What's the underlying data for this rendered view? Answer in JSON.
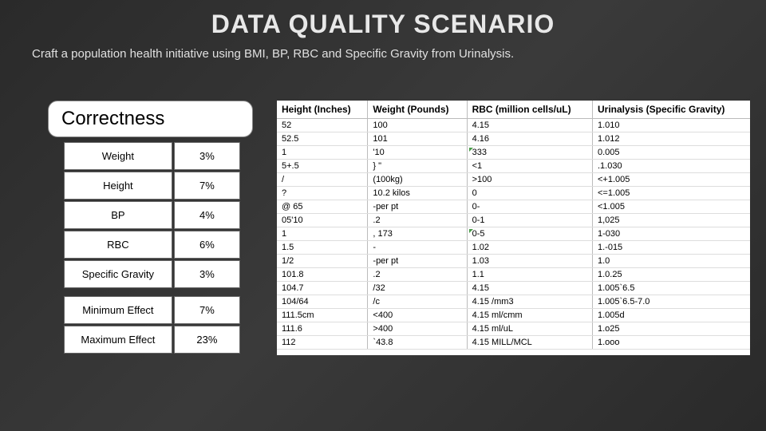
{
  "title": "DATA QUALITY SCENARIO",
  "subtitle": "Craft a population health initiative using BMI, BP, RBC and Specific Gravity from Urinalysis.",
  "correctness": {
    "header": "Correctness",
    "rows": [
      {
        "label": "Weight",
        "value": "3%"
      },
      {
        "label": "Height",
        "value": "7%"
      },
      {
        "label": "BP",
        "value": "4%"
      },
      {
        "label": "RBC",
        "value": "6%"
      },
      {
        "label": "Specific Gravity",
        "value": "3%"
      }
    ],
    "summary": [
      {
        "label": "Minimum Effect",
        "value": "7%"
      },
      {
        "label": "Maximum Effect",
        "value": "23%"
      }
    ]
  },
  "data_table": {
    "columns": [
      "Height (Inches)",
      "Weight (Pounds)",
      "RBC (million cells/uL)",
      "Urinalysis (Specific Gravity)"
    ],
    "rows": [
      [
        "52",
        "100",
        "4.15",
        "1.010"
      ],
      [
        "52.5",
        "101",
        "4.16",
        "1.012"
      ],
      [
        "1",
        "'10",
        "333",
        "0.005"
      ],
      [
        "5+.5",
        "} \"",
        "<1",
        ".1.030"
      ],
      [
        "/",
        "(100kg)",
        ">100",
        "<+1.005"
      ],
      [
        "?",
        "10.2 kilos",
        "0",
        "<=1.005"
      ],
      [
        "@ 65",
        "-per pt",
        "0-",
        "<1.005"
      ],
      [
        "05'10",
        ".2",
        "0-1",
        "1,025"
      ],
      [
        "1",
        ",                    173",
        "0-5",
        "1-030"
      ],
      [
        "1.5",
        "-",
        "1.02",
        "1.-015"
      ],
      [
        "1/2",
        "-per pt",
        "1.03",
        "1.0"
      ],
      [
        "101.8",
        ".2",
        "1.1",
        "1.0.25"
      ],
      [
        "104.7",
        "/32",
        "4.15",
        "1.005`6.5"
      ],
      [
        "104/64",
        "/c",
        "4.15 /mm3",
        "1.005`6.5-7.0"
      ],
      [
        "111.5cm",
        "<400",
        "4.15 ml/cmm",
        "1.005d"
      ],
      [
        "111.6",
        ">400",
        "4.15 ml/uL",
        "1.o25"
      ],
      [
        "112",
        "`43.8",
        "4.15 MILL/MCL",
        "1.ooo"
      ]
    ],
    "green_marks": [
      [
        2,
        2
      ],
      [
        8,
        2
      ]
    ]
  },
  "style": {
    "bg_gradient": [
      "#2a2a2a",
      "#3a3a3a"
    ],
    "title_color": "#e8e8e8",
    "cell_bg": "#ffffff",
    "cell_text": "#000000",
    "grid_color": "#bbbbbb"
  }
}
